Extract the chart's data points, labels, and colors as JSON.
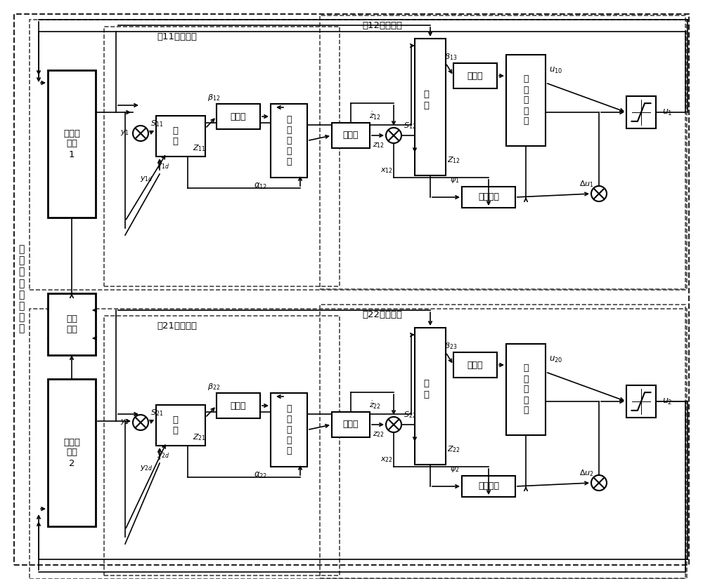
{
  "bg_color": "#ffffff",
  "outer_label": "平\n行\n单\n级\n双\n倒\n立\n摆",
  "block_11_title": "第11子控制器",
  "block_12_title": "第12子控制器",
  "block_21_title": "第21子控制器",
  "block_22_title": "第22子控制器",
  "pendulum1_label": "单级倒\n立摆\n1",
  "pendulum2_label": "单级倒\n立摆\n2",
  "interact_label": "相互\n作用",
  "lbl_zuhe": "组\n合",
  "lbl_bljq": "逼近器",
  "lbl_fxkz": "非\n线\n性\n控\n制",
  "lbl_lvbq": "滤波器",
  "lbl_fzxt": "辅助系统"
}
